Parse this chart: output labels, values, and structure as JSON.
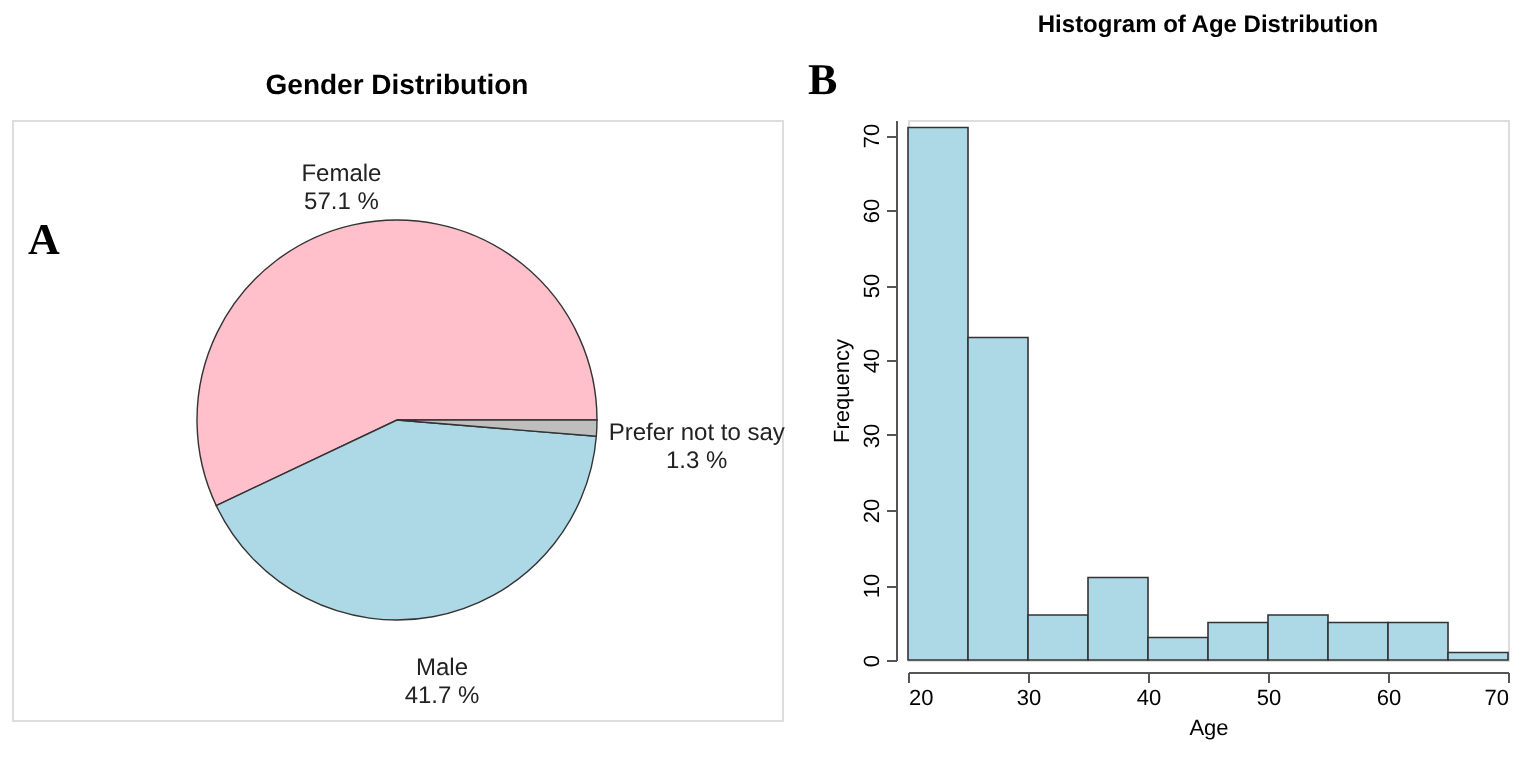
{
  "chart_data": [
    {
      "type": "pie",
      "title": "Gender Distribution",
      "categories": [
        "Female",
        "Male",
        "Prefer not to say"
      ],
      "values": [
        57.1,
        41.7,
        1.3
      ],
      "colors": [
        "#ffc0cb",
        "#add8e6",
        "#bebebe"
      ],
      "value_labels": [
        "57.1 %",
        "41.7 %",
        "1.3 %"
      ],
      "annotations": [
        "A"
      ]
    },
    {
      "type": "histogram",
      "title": "Histogram of Age Distribution",
      "xlabel": "Age",
      "ylabel": "Frequency",
      "bins": [
        20,
        25,
        30,
        35,
        40,
        45,
        50,
        55,
        60,
        65,
        70
      ],
      "values": [
        71,
        43,
        6,
        11,
        3,
        5,
        6,
        5,
        5,
        1
      ],
      "color": "#add8e6",
      "xlim": [
        20,
        70
      ],
      "xticks": [
        20,
        30,
        40,
        50,
        60,
        70
      ],
      "ylim": [
        0,
        72
      ],
      "yticks": [
        0,
        10,
        20,
        30,
        40,
        50,
        60,
        70
      ],
      "grid": false,
      "annotations": [
        "B"
      ]
    }
  ]
}
